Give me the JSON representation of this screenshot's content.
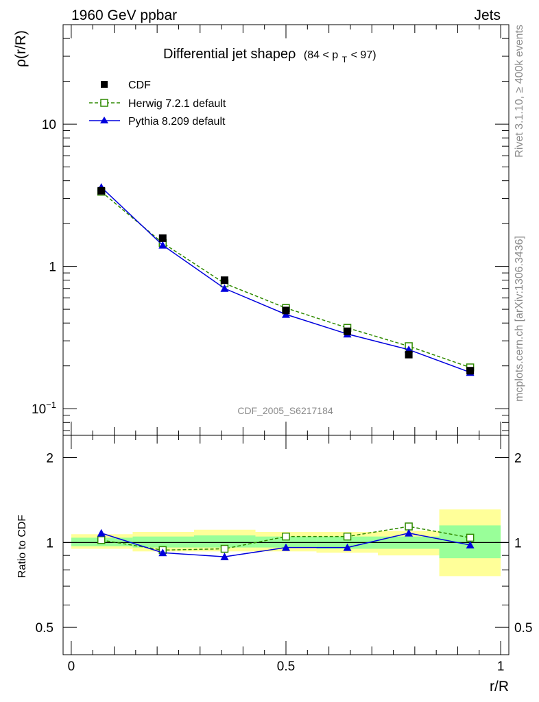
{
  "header": {
    "left": "1960 GeV ppbar",
    "right": "Jets"
  },
  "side_text": {
    "rivet": "Rivet 3.1.10, ≥ 400k events",
    "mcplots": "mcplots.cern.ch [arXiv:1306.3436]"
  },
  "title": {
    "main": "Differential jet shapeρ",
    "range_open": "(84 < p",
    "range_sub": "T",
    "range_close": " < 97)"
  },
  "analysis_label": "CDF_2005_S6217184",
  "legend": [
    {
      "label": "CDF",
      "color": "#000000",
      "marker": "filled-square"
    },
    {
      "label": "Herwig 7.2.1 default",
      "color": "#2f8a00",
      "marker": "open-square"
    },
    {
      "label": "Pythia 8.209 default",
      "color": "#0000dd",
      "marker": "filled-triangle"
    }
  ],
  "chart_data": [
    {
      "type": "scatter",
      "ylabel": "ρ(r/R)",
      "yscale": "log",
      "xlim": [
        0,
        1
      ],
      "ylim": [
        0.065,
        50
      ],
      "ytick_labels": [
        {
          "value": 0.1,
          "base": "10",
          "exp": "−1"
        },
        {
          "value": 1,
          "base": "1",
          "exp": ""
        },
        {
          "value": 10,
          "base": "10",
          "exp": ""
        }
      ],
      "series": [
        {
          "name": "CDF",
          "x": [
            0.07,
            0.213,
            0.357,
            0.5,
            0.643,
            0.786,
            0.929
          ],
          "values": [
            3.4,
            1.58,
            0.8,
            0.49,
            0.35,
            0.24,
            0.185
          ]
        },
        {
          "name": "Herwig 7.2.1 default",
          "x": [
            0.07,
            0.213,
            0.357,
            0.5,
            0.643,
            0.786,
            0.929
          ],
          "values": [
            3.35,
            1.46,
            0.76,
            0.51,
            0.37,
            0.275,
            0.195
          ]
        },
        {
          "name": "Pythia 8.209 default",
          "x": [
            0.07,
            0.213,
            0.357,
            0.5,
            0.643,
            0.786,
            0.929
          ],
          "values": [
            3.6,
            1.41,
            0.7,
            0.46,
            0.335,
            0.26,
            0.18
          ]
        }
      ]
    },
    {
      "type": "line",
      "ylabel": "Ratio to CDF",
      "xlabel": "r/R",
      "yscale": "log",
      "xlim": [
        0,
        1
      ],
      "ylim": [
        0.4,
        2.4
      ],
      "ytick_labels": [
        0.5,
        1,
        2
      ],
      "xtick_labels": [
        "0",
        "0.5",
        "1"
      ],
      "bands": [
        {
          "x0": 0.0,
          "x1": 0.143,
          "yellow": [
            0.95,
            1.07
          ],
          "green": [
            0.97,
            1.04
          ]
        },
        {
          "x0": 0.143,
          "x1": 0.286,
          "yellow": [
            0.93,
            1.09
          ],
          "green": [
            0.96,
            1.05
          ]
        },
        {
          "x0": 0.286,
          "x1": 0.429,
          "yellow": [
            0.93,
            1.11
          ],
          "green": [
            0.96,
            1.06
          ]
        },
        {
          "x0": 0.429,
          "x1": 0.571,
          "yellow": [
            0.93,
            1.09
          ],
          "green": [
            0.96,
            1.05
          ]
        },
        {
          "x0": 0.571,
          "x1": 0.714,
          "yellow": [
            0.92,
            1.09
          ],
          "green": [
            0.95,
            1.05
          ]
        },
        {
          "x0": 0.714,
          "x1": 0.857,
          "yellow": [
            0.9,
            1.1
          ],
          "green": [
            0.95,
            1.05
          ]
        },
        {
          "x0": 0.857,
          "x1": 1.0,
          "yellow": [
            0.76,
            1.31
          ],
          "green": [
            0.88,
            1.15
          ]
        }
      ],
      "series": [
        {
          "name": "Herwig 7.2.1 default",
          "x": [
            0.07,
            0.213,
            0.357,
            0.5,
            0.643,
            0.786,
            0.929
          ],
          "values": [
            1.02,
            0.94,
            0.95,
            1.05,
            1.05,
            1.14,
            1.04
          ]
        },
        {
          "name": "Pythia 8.209 default",
          "x": [
            0.07,
            0.213,
            0.357,
            0.5,
            0.643,
            0.786,
            0.929
          ],
          "values": [
            1.08,
            0.92,
            0.89,
            0.96,
            0.96,
            1.08,
            0.98
          ]
        }
      ]
    }
  ]
}
